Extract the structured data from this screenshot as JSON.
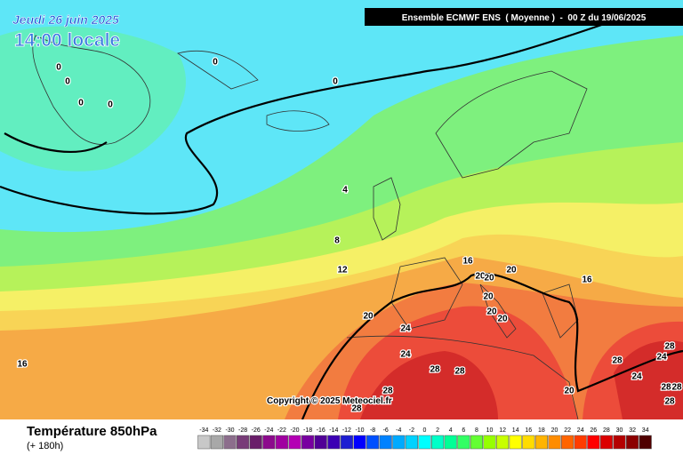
{
  "header": {
    "date": "Jeudi 26 juin 2025",
    "time": "14:00 locale",
    "model": "Ensemble ECMWF ENS  ( Moyenne )  -  00 Z du 19/06/2025"
  },
  "map": {
    "contour_labels": [
      0,
      0,
      0,
      0,
      0,
      0,
      4,
      8,
      12,
      16,
      20,
      20,
      20,
      16,
      20,
      20,
      20,
      20,
      24,
      24,
      16,
      28,
      28,
      28,
      24,
      28,
      24,
      28,
      28,
      20,
      28,
      28,
      28
    ],
    "copyright": "Copyright © 2025 Meteociel.fr"
  },
  "footer": {
    "title": "Température 850hPa",
    "lead": "(+ 180h)"
  },
  "legend": {
    "values": [
      -34,
      -32,
      -30,
      -28,
      -26,
      -24,
      -22,
      -20,
      -18,
      -16,
      -14,
      -12,
      -10,
      -8,
      -6,
      -4,
      -2,
      0,
      2,
      4,
      6,
      8,
      10,
      12,
      14,
      16,
      18,
      20,
      22,
      24,
      26,
      28,
      30,
      32,
      34
    ],
    "colors": [
      "#c8c8c8",
      "#a8a8a8",
      "#8c6e8c",
      "#783c78",
      "#6a1e6a",
      "#8c0a8c",
      "#a000a0",
      "#b400b4",
      "#7800a0",
      "#500096",
      "#3c00b4",
      "#1e1ed2",
      "#0000ff",
      "#0050ff",
      "#0082ff",
      "#00aaff",
      "#00d2ff",
      "#00ffff",
      "#00ffc8",
      "#00ff96",
      "#32ff64",
      "#64ff32",
      "#96ff00",
      "#c8ff00",
      "#ffff00",
      "#ffdc00",
      "#ffb400",
      "#ff8c00",
      "#ff6400",
      "#ff3c00",
      "#ff0000",
      "#dc0000",
      "#b40000",
      "#8c0000",
      "#500000"
    ]
  }
}
